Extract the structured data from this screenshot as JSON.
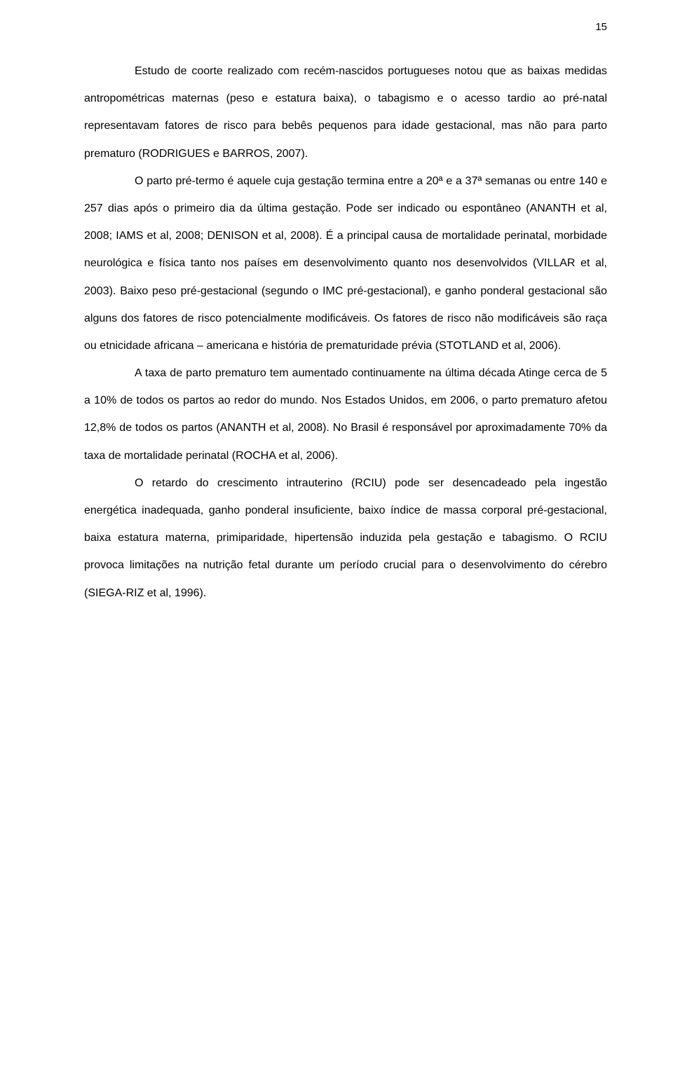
{
  "pageNumber": "15",
  "paragraphs": [
    "Estudo de coorte realizado com recém-nascidos portugueses notou que as baixas medidas antropométricas maternas (peso e estatura baixa), o tabagismo e o acesso tardio ao pré-natal representavam fatores de risco para bebês pequenos para idade gestacional, mas não para parto prematuro (RODRIGUES e BARROS, 2007).",
    "O parto pré-termo é aquele cuja gestação termina entre a 20ª e a 37ª semanas ou entre 140 e 257 dias após o primeiro dia da última gestação. Pode ser indicado ou espontâneo (ANANTH et al, 2008; IAMS et al, 2008; DENISON et al, 2008). É a principal causa de mortalidade perinatal, morbidade neurológica e física tanto nos países em desenvolvimento quanto nos desenvolvidos (VILLAR et al, 2003). Baixo peso pré-gestacional (segundo o IMC pré-gestacional), e ganho ponderal gestacional são alguns dos fatores de risco potencialmente modificáveis. Os fatores de risco não modificáveis são raça ou etnicidade africana – americana e história de prematuridade prévia (STOTLAND et al, 2006).",
    "A taxa de parto prematuro tem aumentado continuamente na última década Atinge cerca de 5 a 10% de todos os partos ao redor do mundo. Nos Estados Unidos, em 2006, o parto prematuro afetou 12,8% de todos os partos (ANANTH et al, 2008). No Brasil é responsável por aproximadamente 70% da taxa de mortalidade perinatal (ROCHA  et al, 2006).",
    "O retardo do crescimento intrauterino (RCIU) pode ser desencadeado pela ingestão energética inadequada, ganho ponderal insuficiente, baixo índice de massa corporal pré-gestacional, baixa estatura materna, primiparidade, hipertensão induzida pela gestação e tabagismo. O RCIU provoca limitações na nutrição fetal durante um período crucial para o desenvolvimento do cérebro (SIEGA-RIZ et al, 1996)."
  ],
  "styles": {
    "backgroundColor": "#ffffff",
    "textColor": "#000000",
    "fontSize": 16,
    "lineHeight": 2.45,
    "textIndent": 72,
    "pageWidth": 960,
    "pageHeight": 1527
  }
}
